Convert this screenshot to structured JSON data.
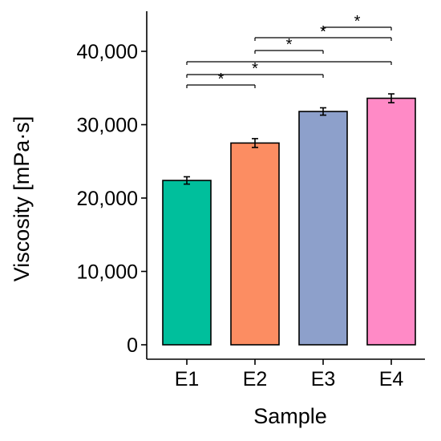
{
  "chart_data": {
    "type": "bar",
    "xlabel": "Sample",
    "ylabel": "Viscosity [mPa·s]",
    "categories": [
      "E1",
      "E2",
      "E3",
      "E4"
    ],
    "values": [
      22400,
      27500,
      31800,
      33600
    ],
    "error": [
      500,
      600,
      500,
      600
    ],
    "colors": [
      "#00BF9C",
      "#FC8D62",
      "#8DA0CB",
      "#FF8AC6"
    ],
    "ylim": [
      -1500,
      45000
    ],
    "yticks": [
      0,
      10000,
      20000,
      30000,
      40000
    ],
    "ytick_labels": [
      "0",
      "10,000",
      "20,000",
      "30,000",
      "40,000"
    ],
    "grid": false,
    "significance": [
      {
        "from": "E1",
        "to": "E2",
        "label": "*"
      },
      {
        "from": "E1",
        "to": "E3",
        "label": "*"
      },
      {
        "from": "E1",
        "to": "E4",
        "label": ""
      },
      {
        "from": "E2",
        "to": "E3",
        "label": "*"
      },
      {
        "from": "E2",
        "to": "E4",
        "label": "*"
      },
      {
        "from": "E3",
        "to": "E4",
        "label": "*"
      }
    ]
  }
}
